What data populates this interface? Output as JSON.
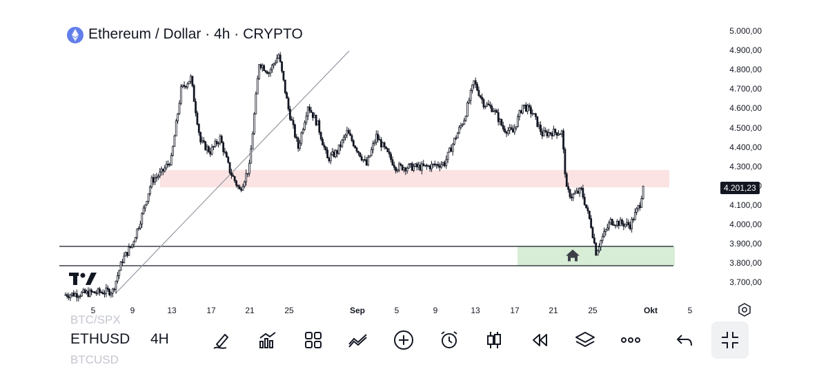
{
  "header": {
    "title": "Ethereum / Dollar · 4h · CRYPTO"
  },
  "price_tag": "4.201,23",
  "y_axis_labels": [
    "5.000,00",
    "4.900,00",
    "4.800,00",
    "4.700,00",
    "4.600,00",
    "4.500,00",
    "4.400,00",
    "4.300,00",
    "4.200,00",
    "4.100,00",
    "4.000,00",
    "3.900,00",
    "3.800,00",
    "3.700,00"
  ],
  "x_axis_labels": [
    "5",
    "9",
    "13",
    "17",
    "21",
    "25",
    "Sep",
    "5",
    "9",
    "13",
    "17",
    "21",
    "25",
    "Okt",
    "5"
  ],
  "toolbar": {
    "symbol": "ETHUSD",
    "timeframe": "4H",
    "symbol_above": "BTC/SPX",
    "symbol_below": "BTCUSD",
    "tools": [
      "brush-tool-icon",
      "indicators-icon",
      "layouts-icon",
      "compare-icon",
      "add-icon",
      "alert-icon",
      "candles-icon",
      "replay-icon",
      "layers-icon",
      "more-icon",
      "undo-icon",
      "collapse-icon"
    ]
  },
  "colors": {
    "candle": "#131722",
    "resistance_zone": "#fbe3e3",
    "support_zone": "#d8edd6",
    "trendline": "#9598a1",
    "level_line": "#131722"
  },
  "chart_data": {
    "type": "candlestick",
    "title": "Ethereum / Dollar · 4h · CRYPTO",
    "symbol": "ETHUSD",
    "interval": "4h",
    "last_price": 4201.23,
    "ylim": [
      3650,
      5000
    ],
    "y_ticks": [
      5000,
      4900,
      4800,
      4700,
      4600,
      4500,
      4400,
      4300,
      4200,
      4100,
      4000,
      3900,
      3800,
      3700
    ],
    "x_ticks": [
      "5",
      "9",
      "13",
      "17",
      "21",
      "25",
      "Sep",
      "5",
      "9",
      "13",
      "17",
      "21",
      "25",
      "Okt",
      "5"
    ],
    "price_path": [
      {
        "date": "Aug 2",
        "price": 3640
      },
      {
        "date": "Aug 5",
        "price": 3650
      },
      {
        "date": "Aug 7",
        "price": 3660
      },
      {
        "date": "Aug 8",
        "price": 3820
      },
      {
        "date": "Aug 9",
        "price": 3900
      },
      {
        "date": "Aug 10",
        "price": 4050
      },
      {
        "date": "Aug 11",
        "price": 4230
      },
      {
        "date": "Aug 12",
        "price": 4270
      },
      {
        "date": "Aug 13",
        "price": 4340
      },
      {
        "date": "Aug 14",
        "price": 4700
      },
      {
        "date": "Aug 15",
        "price": 4760
      },
      {
        "date": "Aug 16",
        "price": 4430
      },
      {
        "date": "Aug 17",
        "price": 4380
      },
      {
        "date": "Aug 18",
        "price": 4450
      },
      {
        "date": "Aug 19",
        "price": 4280
      },
      {
        "date": "Aug 20",
        "price": 4180
      },
      {
        "date": "Aug 21",
        "price": 4300
      },
      {
        "date": "Aug 22",
        "price": 4840
      },
      {
        "date": "Aug 23",
        "price": 4790
      },
      {
        "date": "Aug 24",
        "price": 4880
      },
      {
        "date": "Aug 25",
        "price": 4600
      },
      {
        "date": "Aug 26",
        "price": 4400
      },
      {
        "date": "Aug 27",
        "price": 4620
      },
      {
        "date": "Aug 28",
        "price": 4520
      },
      {
        "date": "Aug 29",
        "price": 4340
      },
      {
        "date": "Aug 30",
        "price": 4380
      },
      {
        "date": "Aug 31",
        "price": 4480
      },
      {
        "date": "Sep 2",
        "price": 4310
      },
      {
        "date": "Sep 3",
        "price": 4460
      },
      {
        "date": "Sep 5",
        "price": 4300
      },
      {
        "date": "Sep 6",
        "price": 4300
      },
      {
        "date": "Sep 8",
        "price": 4300
      },
      {
        "date": "Sep 10",
        "price": 4320
      },
      {
        "date": "Sep 11",
        "price": 4440
      },
      {
        "date": "Sep 12",
        "price": 4550
      },
      {
        "date": "Sep 13",
        "price": 4740
      },
      {
        "date": "Sep 14",
        "price": 4630
      },
      {
        "date": "Sep 15",
        "price": 4600
      },
      {
        "date": "Sep 16",
        "price": 4500
      },
      {
        "date": "Sep 17",
        "price": 4480
      },
      {
        "date": "Sep 18",
        "price": 4620
      },
      {
        "date": "Sep 19",
        "price": 4580
      },
      {
        "date": "Sep 20",
        "price": 4470
      },
      {
        "date": "Sep 21",
        "price": 4480
      },
      {
        "date": "Sep 22",
        "price": 4480
      },
      {
        "date": "Sep 22 12h",
        "price": 4180
      },
      {
        "date": "Sep 23",
        "price": 4150
      },
      {
        "date": "Sep 24",
        "price": 4180
      },
      {
        "date": "Sep 25",
        "price": 4000
      },
      {
        "date": "Sep 25 12h",
        "price": 3860
      },
      {
        "date": "Sep 26",
        "price": 3920
      },
      {
        "date": "Sep 27",
        "price": 4020
      },
      {
        "date": "Sep 28",
        "price": 4010
      },
      {
        "date": "Sep 29",
        "price": 4000
      },
      {
        "date": "Sep 30",
        "price": 4110
      },
      {
        "date": "Sep 30 8h",
        "price": 4201.23
      }
    ],
    "zones": [
      {
        "name": "resistance",
        "from": 4195,
        "to": 4285,
        "color": "#fbe3e3"
      },
      {
        "name": "support",
        "from": 3790,
        "to": 3890,
        "color": "#d8edd6"
      }
    ],
    "horizontal_levels": [
      3890,
      3790
    ],
    "trendline": {
      "from": {
        "date": "Aug 7",
        "price": 3650
      },
      "to": {
        "date": "Aug 31",
        "price": 4900
      }
    }
  }
}
